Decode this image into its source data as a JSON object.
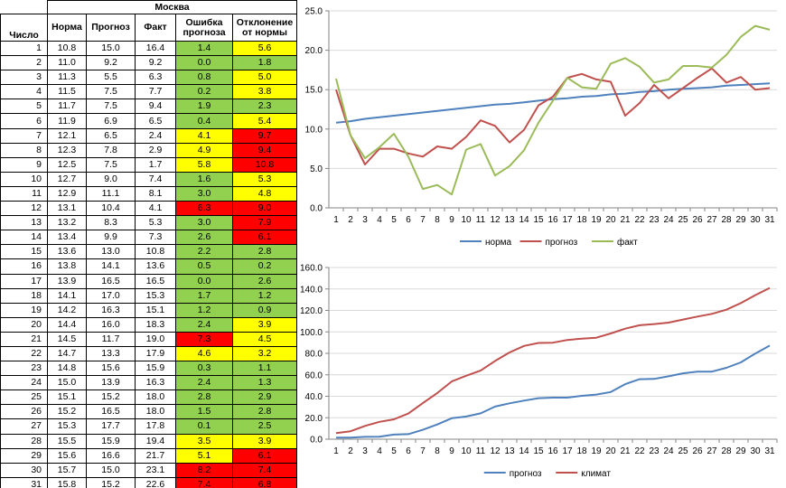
{
  "colors": {
    "green": "#92d050",
    "yellow": "#ffff00",
    "red": "#ff0000",
    "norma": "#4f81bd",
    "prognoz": "#c0504d",
    "fakt": "#9bbb59",
    "klimat": "#c0504d",
    "grid": "#d9d9d9",
    "axis": "#868686"
  },
  "table": {
    "city": "Москва",
    "headers": {
      "day": "Число",
      "norma": "Норма",
      "prognoz": "Прогноз",
      "fakt": "Факт",
      "error": "Ошибка прогноза",
      "deviation": "Отклонение от нормы"
    },
    "rows": [
      {
        "day": "1",
        "norma": "10.8",
        "prognoz": "15.0",
        "fakt": "16.4",
        "error": "1.4",
        "error_color": "green",
        "dev": "5.6",
        "dev_color": "yellow"
      },
      {
        "day": "2",
        "norma": "11.0",
        "prognoz": "9.2",
        "fakt": "9.2",
        "error": "0.0",
        "error_color": "green",
        "dev": "1.8",
        "dev_color": "green"
      },
      {
        "day": "3",
        "norma": "11.3",
        "prognoz": "5.5",
        "fakt": "6.3",
        "error": "0.8",
        "error_color": "green",
        "dev": "5.0",
        "dev_color": "yellow"
      },
      {
        "day": "4",
        "norma": "11.5",
        "prognoz": "7.5",
        "fakt": "7.7",
        "error": "0.2",
        "error_color": "green",
        "dev": "3.8",
        "dev_color": "yellow"
      },
      {
        "day": "5",
        "norma": "11.7",
        "prognoz": "7.5",
        "fakt": "9.4",
        "error": "1.9",
        "error_color": "green",
        "dev": "2.3",
        "dev_color": "green"
      },
      {
        "day": "6",
        "norma": "11.9",
        "prognoz": "6.9",
        "fakt": "6.5",
        "error": "0.4",
        "error_color": "green",
        "dev": "5.4",
        "dev_color": "yellow"
      },
      {
        "day": "7",
        "norma": "12.1",
        "prognoz": "6.5",
        "fakt": "2.4",
        "error": "4.1",
        "error_color": "yellow",
        "dev": "9.7",
        "dev_color": "red"
      },
      {
        "day": "8",
        "norma": "12.3",
        "prognoz": "7.8",
        "fakt": "2.9",
        "error": "4.9",
        "error_color": "yellow",
        "dev": "9.4",
        "dev_color": "red"
      },
      {
        "day": "9",
        "norma": "12.5",
        "prognoz": "7.5",
        "fakt": "1.7",
        "error": "5.8",
        "error_color": "yellow",
        "dev": "10.8",
        "dev_color": "red"
      },
      {
        "day": "10",
        "norma": "12.7",
        "prognoz": "9.0",
        "fakt": "7.4",
        "error": "1.6",
        "error_color": "green",
        "dev": "5.3",
        "dev_color": "yellow"
      },
      {
        "day": "11",
        "norma": "12.9",
        "prognoz": "11.1",
        "fakt": "8.1",
        "error": "3.0",
        "error_color": "green",
        "dev": "4.8",
        "dev_color": "yellow"
      },
      {
        "day": "12",
        "norma": "13.1",
        "prognoz": "10.4",
        "fakt": "4.1",
        "error": "6.3",
        "error_color": "red",
        "dev": "9.0",
        "dev_color": "red"
      },
      {
        "day": "13",
        "norma": "13.2",
        "prognoz": "8.3",
        "fakt": "5.3",
        "error": "3.0",
        "error_color": "green",
        "dev": "7.9",
        "dev_color": "red"
      },
      {
        "day": "14",
        "norma": "13.4",
        "prognoz": "9.9",
        "fakt": "7.3",
        "error": "2.6",
        "error_color": "green",
        "dev": "6.1",
        "dev_color": "red"
      },
      {
        "day": "15",
        "norma": "13.6",
        "prognoz": "13.0",
        "fakt": "10.8",
        "error": "2.2",
        "error_color": "green",
        "dev": "2.8",
        "dev_color": "green"
      },
      {
        "day": "16",
        "norma": "13.8",
        "prognoz": "14.1",
        "fakt": "13.6",
        "error": "0.5",
        "error_color": "green",
        "dev": "0.2",
        "dev_color": "green"
      },
      {
        "day": "17",
        "norma": "13.9",
        "prognoz": "16.5",
        "fakt": "16.5",
        "error": "0.0",
        "error_color": "green",
        "dev": "2.6",
        "dev_color": "green"
      },
      {
        "day": "18",
        "norma": "14.1",
        "prognoz": "17.0",
        "fakt": "15.3",
        "error": "1.7",
        "error_color": "green",
        "dev": "1.2",
        "dev_color": "green"
      },
      {
        "day": "19",
        "norma": "14.2",
        "prognoz": "16.3",
        "fakt": "15.1",
        "error": "1.2",
        "error_color": "green",
        "dev": "0.9",
        "dev_color": "green"
      },
      {
        "day": "20",
        "norma": "14.4",
        "prognoz": "16.0",
        "fakt": "18.3",
        "error": "2.4",
        "error_color": "green",
        "dev": "3.9",
        "dev_color": "yellow"
      },
      {
        "day": "21",
        "norma": "14.5",
        "prognoz": "11.7",
        "fakt": "19.0",
        "error": "7.3",
        "error_color": "red",
        "dev": "4.5",
        "dev_color": "yellow"
      },
      {
        "day": "22",
        "norma": "14.7",
        "prognoz": "13.3",
        "fakt": "17.9",
        "error": "4.6",
        "error_color": "yellow",
        "dev": "3.2",
        "dev_color": "yellow"
      },
      {
        "day": "23",
        "norma": "14.8",
        "prognoz": "15.6",
        "fakt": "15.9",
        "error": "0.3",
        "error_color": "green",
        "dev": "1.1",
        "dev_color": "green"
      },
      {
        "day": "24",
        "norma": "15.0",
        "prognoz": "13.9",
        "fakt": "16.3",
        "error": "2.4",
        "error_color": "green",
        "dev": "1.3",
        "dev_color": "green"
      },
      {
        "day": "25",
        "norma": "15.1",
        "prognoz": "15.2",
        "fakt": "18.0",
        "error": "2.8",
        "error_color": "green",
        "dev": "2.9",
        "dev_color": "green"
      },
      {
        "day": "26",
        "norma": "15.2",
        "prognoz": "16.5",
        "fakt": "18.0",
        "error": "1.5",
        "error_color": "green",
        "dev": "2.8",
        "dev_color": "green"
      },
      {
        "day": "27",
        "norma": "15.3",
        "prognoz": "17.7",
        "fakt": "17.8",
        "error": "0.1",
        "error_color": "green",
        "dev": "2.5",
        "dev_color": "green"
      },
      {
        "day": "28",
        "norma": "15.5",
        "prognoz": "15.9",
        "fakt": "19.4",
        "error": "3.5",
        "error_color": "yellow",
        "dev": "3.9",
        "dev_color": "yellow"
      },
      {
        "day": "29",
        "norma": "15.6",
        "prognoz": "16.6",
        "fakt": "21.7",
        "error": "5.1",
        "error_color": "yellow",
        "dev": "6.1",
        "dev_color": "red"
      },
      {
        "day": "30",
        "norma": "15.7",
        "prognoz": "15.0",
        "fakt": "23.1",
        "error": "8.2",
        "error_color": "red",
        "dev": "7.4",
        "dev_color": "red"
      },
      {
        "day": "31",
        "norma": "15.8",
        "prognoz": "15.2",
        "fakt": "22.6",
        "error": "7.4",
        "error_color": "red",
        "dev": "6.8",
        "dev_color": "red"
      }
    ]
  },
  "chart_data": [
    {
      "type": "line",
      "x": [
        1,
        2,
        3,
        4,
        5,
        6,
        7,
        8,
        9,
        10,
        11,
        12,
        13,
        14,
        15,
        16,
        17,
        18,
        19,
        20,
        21,
        22,
        23,
        24,
        25,
        26,
        27,
        28,
        29,
        30,
        31
      ],
      "ylim": [
        0,
        25
      ],
      "yticks": [
        "0.0",
        "5.0",
        "10.0",
        "15.0",
        "20.0",
        "25.0"
      ],
      "grid": true,
      "legend": "bottom",
      "series": [
        {
          "name": "норма",
          "color": "#4f81bd",
          "values": [
            10.8,
            11.0,
            11.3,
            11.5,
            11.7,
            11.9,
            12.1,
            12.3,
            12.5,
            12.7,
            12.9,
            13.1,
            13.2,
            13.4,
            13.6,
            13.8,
            13.9,
            14.1,
            14.2,
            14.4,
            14.5,
            14.7,
            14.8,
            15.0,
            15.1,
            15.2,
            15.3,
            15.5,
            15.6,
            15.7,
            15.8
          ]
        },
        {
          "name": "прогноз",
          "color": "#c0504d",
          "values": [
            15.0,
            9.2,
            5.5,
            7.5,
            7.5,
            6.9,
            6.5,
            7.8,
            7.5,
            9.0,
            11.1,
            10.4,
            8.3,
            9.9,
            13.0,
            14.1,
            16.5,
            17.0,
            16.3,
            16.0,
            11.7,
            13.3,
            15.6,
            13.9,
            15.2,
            16.5,
            17.7,
            15.9,
            16.6,
            15.0,
            15.2
          ]
        },
        {
          "name": "факт",
          "color": "#9bbb59",
          "values": [
            16.4,
            9.2,
            6.3,
            7.7,
            9.4,
            6.5,
            2.4,
            2.9,
            1.7,
            7.4,
            8.1,
            4.1,
            5.3,
            7.3,
            10.8,
            13.6,
            16.5,
            15.3,
            15.1,
            18.3,
            19.0,
            17.9,
            15.9,
            16.3,
            18.0,
            18.0,
            17.8,
            19.4,
            21.7,
            23.1,
            22.6
          ]
        }
      ]
    },
    {
      "type": "line",
      "x": [
        1,
        2,
        3,
        4,
        5,
        6,
        7,
        8,
        9,
        10,
        11,
        12,
        13,
        14,
        15,
        16,
        17,
        18,
        19,
        20,
        21,
        22,
        23,
        24,
        25,
        26,
        27,
        28,
        29,
        30,
        31
      ],
      "ylim": [
        0,
        160
      ],
      "yticks": [
        "0.0",
        "20.0",
        "40.0",
        "60.0",
        "80.0",
        "100.0",
        "120.0",
        "140.0",
        "160.0"
      ],
      "grid": true,
      "legend": "bottom",
      "series": [
        {
          "name": "прогноз",
          "color": "#4f81bd",
          "values": [
            1.4,
            1.4,
            2.2,
            2.4,
            4.3,
            4.7,
            8.8,
            13.7,
            19.5,
            21.1,
            24.1,
            30.4,
            33.4,
            36.0,
            38.2,
            38.7,
            38.7,
            40.4,
            41.6,
            44.0,
            51.3,
            55.9,
            56.2,
            58.6,
            61.4,
            62.9,
            63.0,
            66.5,
            71.6,
            79.8,
            87.2
          ]
        },
        {
          "name": "климат",
          "color": "#c0504d",
          "values": [
            5.6,
            7.4,
            12.4,
            16.2,
            18.5,
            23.9,
            33.6,
            43.0,
            53.8,
            59.1,
            63.9,
            72.9,
            80.8,
            86.9,
            89.7,
            89.9,
            92.5,
            93.7,
            94.6,
            98.5,
            103.0,
            106.2,
            107.3,
            108.6,
            111.5,
            114.3,
            116.8,
            120.7,
            126.8,
            134.2,
            141.0
          ]
        }
      ]
    }
  ]
}
